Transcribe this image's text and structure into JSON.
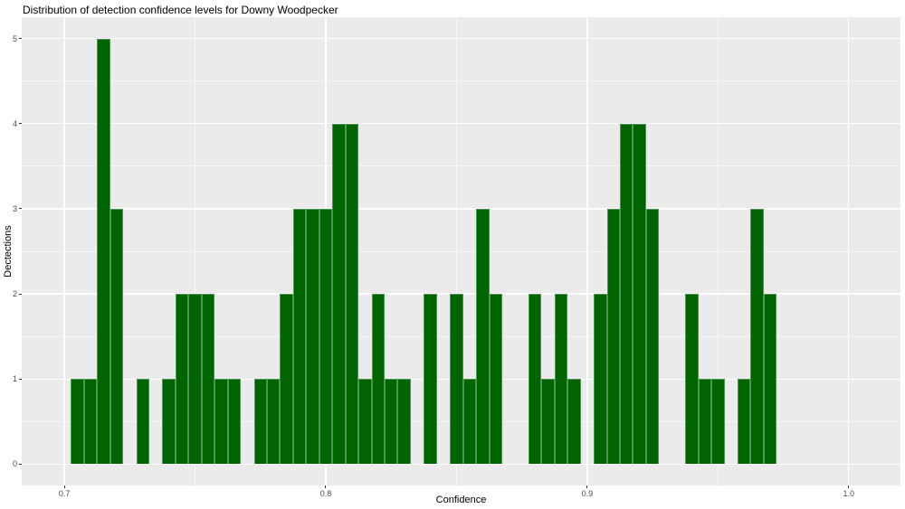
{
  "chart_data": {
    "type": "bar",
    "title": "Distribution of detection confidence levels for Downy Woodpecker",
    "xlabel": "Confidence",
    "ylabel": "Dectections",
    "legend": "none",
    "grid": "on",
    "bin_width": 0.005,
    "xlim": [
      0.6837,
      1.0198
    ],
    "ylim": [
      -0.25,
      5.25
    ],
    "x_breaks": [
      0.7,
      0.8,
      0.9,
      1.0
    ],
    "x_tick_labels": [
      "0.7",
      "0.8",
      "0.9",
      "1.0"
    ],
    "x_minor_breaks": [
      0.75,
      0.85,
      0.95
    ],
    "y_breaks": [
      0,
      1,
      2,
      3,
      4,
      5
    ],
    "y_tick_labels": [
      "0",
      "1",
      "2",
      "3",
      "4",
      "5"
    ],
    "y_minor_breaks": [
      0.5,
      1.5,
      2.5,
      3.5,
      4.5
    ],
    "bin_centers": [
      0.705,
      0.71,
      0.715,
      0.72,
      0.73,
      0.74,
      0.745,
      0.75,
      0.755,
      0.76,
      0.765,
      0.775,
      0.78,
      0.785,
      0.79,
      0.795,
      0.8,
      0.805,
      0.81,
      0.815,
      0.82,
      0.825,
      0.83,
      0.84,
      0.85,
      0.855,
      0.86,
      0.865,
      0.88,
      0.885,
      0.89,
      0.895,
      0.905,
      0.91,
      0.915,
      0.92,
      0.925,
      0.94,
      0.945,
      0.95,
      0.96,
      0.965,
      0.97
    ],
    "counts": [
      1,
      1,
      5,
      3,
      1,
      1,
      2,
      2,
      2,
      1,
      1,
      1,
      1,
      2,
      3,
      3,
      3,
      4,
      4,
      1,
      2,
      1,
      1,
      2,
      2,
      1,
      3,
      2,
      2,
      1,
      2,
      1,
      2,
      3,
      4,
      4,
      3,
      2,
      1,
      1,
      1,
      3,
      2
    ],
    "colors": {
      "bar_fill": "#006400",
      "bar_border": "#4b9650",
      "panel_bg": "#ebebeb",
      "figure_bg": "#ffffff",
      "grid_major": "#ffffff",
      "grid_minor": "rgba(255,255,255,0.6)",
      "tick": "#333333",
      "tick_label": "#4d4d4d",
      "title_color": "#000000"
    }
  }
}
